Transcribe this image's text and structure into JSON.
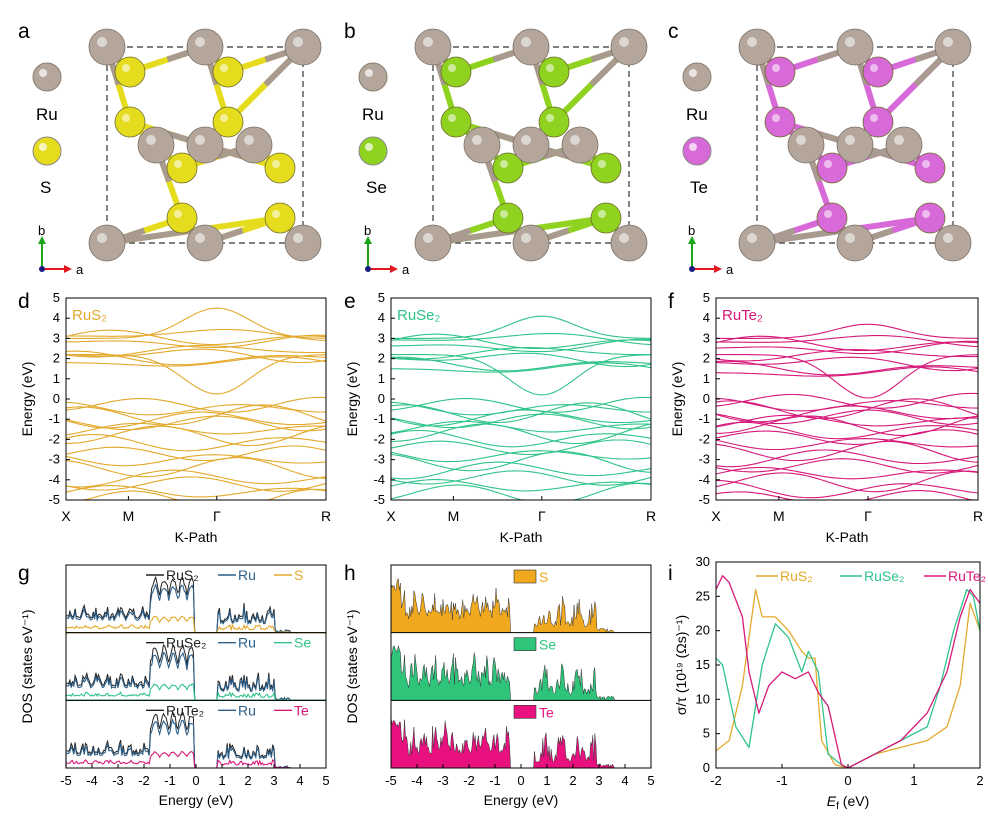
{
  "panel_labels": [
    "a",
    "b",
    "c",
    "d",
    "e",
    "f",
    "g",
    "h",
    "i"
  ],
  "structures": [
    {
      "metal": "Ru",
      "chalcogen": "S",
      "color": "#e6dc1e"
    },
    {
      "metal": "Ru",
      "chalcogen": "Se",
      "color": "#8fd21f"
    },
    {
      "metal": "Ru",
      "chalcogen": "Te",
      "color": "#d869d8"
    }
  ],
  "ru_color": "#b4a69b",
  "axis_b": "b",
  "axis_a": "a",
  "chart_data": [
    {
      "type": "line",
      "panel": "d",
      "title": "RuS₂",
      "color": "#e3a92c",
      "xlabel": "K-Path",
      "ylabel": "Energy (eV)",
      "xticks": [
        "X",
        "M",
        "Γ",
        "R"
      ],
      "ylim": [
        -5,
        5
      ],
      "yticks": [
        -5,
        -4,
        -3,
        -2,
        -1,
        0,
        1,
        2,
        3,
        4,
        5
      ],
      "bands": {
        "top_max": 4.5,
        "gap_min": 0.25,
        "conduction": [
          1.8,
          2.0,
          2.2,
          2.4,
          2.8,
          3.0,
          3.2
        ],
        "valence": [
          -0.3,
          -0.5,
          -0.8,
          -1.0,
          -1.2,
          -1.5,
          -1.8,
          -2.2,
          -2.7,
          -3.0,
          -3.4,
          -3.9,
          -4.2,
          -4.6,
          -5.0
        ]
      }
    },
    {
      "type": "line",
      "panel": "e",
      "title": "RuSe₂",
      "color": "#30c48a",
      "xlabel": "K-Path",
      "ylabel": "Energy (eV)",
      "xticks": [
        "X",
        "M",
        "Γ",
        "R"
      ],
      "ylim": [
        -5,
        5
      ],
      "yticks": [
        -5,
        -4,
        -3,
        -2,
        -1,
        0,
        1,
        2,
        3,
        4,
        5
      ],
      "bands": {
        "top_max": 4.1,
        "gap_min": 0.2,
        "conduction": [
          1.5,
          1.7,
          2.0,
          2.3,
          2.6,
          2.8,
          3.0
        ],
        "valence": [
          -0.3,
          -0.5,
          -0.7,
          -0.9,
          -1.1,
          -1.4,
          -1.7,
          -2.0,
          -2.4,
          -2.8,
          -3.1,
          -3.5,
          -3.9,
          -4.3,
          -4.7
        ]
      }
    },
    {
      "type": "line",
      "panel": "f",
      "title": "RuTe₂",
      "color": "#d6197a",
      "xlabel": "K-Path",
      "ylabel": "Energy (eV)",
      "xticks": [
        "X",
        "M",
        "Γ",
        "R"
      ],
      "ylim": [
        -5,
        5
      ],
      "yticks": [
        -5,
        -4,
        -3,
        -2,
        -1,
        0,
        1,
        2,
        3,
        4,
        5
      ],
      "bands": {
        "top_max": 3.7,
        "gap_min": 0.05,
        "conduction": [
          1.3,
          1.5,
          1.8,
          2.2,
          2.5,
          2.7,
          2.9
        ],
        "valence": [
          -0.1,
          -0.3,
          -0.5,
          -0.7,
          -0.9,
          -1.1,
          -1.3,
          -1.6,
          -1.9,
          -2.2,
          -2.6,
          -2.9,
          -3.3,
          -3.7,
          -4.1,
          -4.5,
          -4.9
        ]
      }
    },
    {
      "type": "area",
      "panel": "g",
      "xlabel": "Energy (eV)",
      "ylabel": "DOS (states eV⁻¹)",
      "xlim": [
        -5,
        5
      ],
      "xticks": [
        -5,
        -4,
        -3,
        -2,
        -1,
        0,
        1,
        2,
        3,
        4,
        5
      ],
      "subpanels": [
        {
          "legend": [
            {
              "label": "RuS₂",
              "color": "#222222"
            },
            {
              "label": "Ru",
              "color": "#2c5f8a"
            },
            {
              "label": "S",
              "color": "#e3a92c"
            }
          ],
          "el_color": "#e3a92c"
        },
        {
          "legend": [
            {
              "label": "RuSe₂",
              "color": "#222222"
            },
            {
              "label": "Ru",
              "color": "#2c5f8a"
            },
            {
              "label": "Se",
              "color": "#30c48a"
            }
          ],
          "el_color": "#30c48a"
        },
        {
          "legend": [
            {
              "label": "RuTe₂",
              "color": "#222222"
            },
            {
              "label": "Ru",
              "color": "#2c5f8a"
            },
            {
              "label": "Te",
              "color": "#d6197a"
            }
          ],
          "el_color": "#d6197a"
        }
      ]
    },
    {
      "type": "area",
      "panel": "h",
      "xlabel": "Energy (eV)",
      "ylabel": "DOS (states eV⁻¹)",
      "xlim": [
        -5,
        5
      ],
      "xticks": [
        -5,
        -4,
        -3,
        -2,
        -1,
        0,
        1,
        2,
        3,
        4,
        5
      ],
      "subpanels": [
        {
          "label": "S",
          "color": "#f0a81e"
        },
        {
          "label": "Se",
          "color": "#2ec47a"
        },
        {
          "label": "Te",
          "color": "#e8117f"
        }
      ]
    },
    {
      "type": "line",
      "panel": "i",
      "xlabel": "E_f (eV)",
      "ylabel": "σ/τ (10¹⁹ (Ωs)⁻¹)",
      "xlim": [
        -2,
        2
      ],
      "ylim": [
        0,
        30
      ],
      "xticks": [
        -2,
        -1,
        0,
        1,
        2
      ],
      "yticks": [
        0,
        5,
        10,
        15,
        20,
        25,
        30
      ],
      "series": [
        {
          "name": "RuS₂",
          "color": "#e3a92c",
          "x": [
            -2.0,
            -1.8,
            -1.6,
            -1.4,
            -1.3,
            -1.1,
            -0.9,
            -0.7,
            -0.6,
            -0.5,
            -0.4,
            -0.2,
            0.0,
            0.4,
            0.8,
            1.2,
            1.5,
            1.7,
            1.85,
            2.0
          ],
          "y": [
            2.5,
            4,
            12,
            26,
            22,
            22,
            20,
            17,
            16,
            16,
            4,
            0.5,
            0,
            2,
            3,
            4,
            6,
            12,
            24,
            20
          ]
        },
        {
          "name": "RuSe₂",
          "color": "#30c48a",
          "x": [
            -2.0,
            -1.9,
            -1.7,
            -1.5,
            -1.3,
            -1.1,
            -0.9,
            -0.7,
            -0.6,
            -0.45,
            -0.3,
            -0.1,
            0.0,
            0.4,
            0.8,
            1.2,
            1.4,
            1.6,
            1.8,
            1.9,
            2.0
          ],
          "y": [
            16,
            15,
            6,
            3,
            15,
            21,
            19,
            14,
            17,
            14,
            2,
            0.5,
            0,
            2,
            4,
            6,
            12,
            20,
            26,
            25,
            20
          ]
        },
        {
          "name": "RuTe₂",
          "color": "#d6197a",
          "x": [
            -2.0,
            -1.9,
            -1.8,
            -1.6,
            -1.5,
            -1.35,
            -1.2,
            -1.0,
            -0.8,
            -0.6,
            -0.45,
            -0.3,
            -0.1,
            0.0,
            0.4,
            0.8,
            1.2,
            1.5,
            1.7,
            1.85,
            2.0
          ],
          "y": [
            26,
            28,
            27,
            22,
            14,
            8,
            12,
            14,
            13,
            14,
            11,
            9,
            0.5,
            0,
            2,
            4,
            8,
            14,
            22,
            26,
            24
          ]
        }
      ]
    }
  ]
}
